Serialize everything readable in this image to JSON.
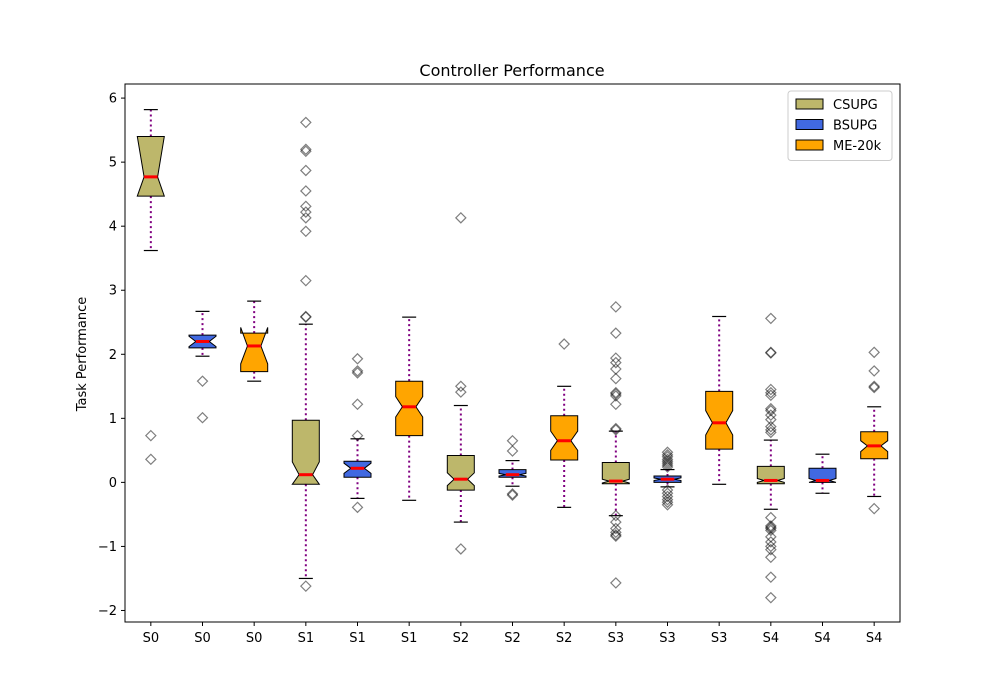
{
  "chart_data": {
    "type": "boxplot",
    "title": "Controller Performance",
    "xlabel": "",
    "ylabel": "Task Performance",
    "ylim": [
      -2.18,
      6.22
    ],
    "yticks": [
      -2,
      -1,
      0,
      1,
      2,
      3,
      4,
      5,
      6
    ],
    "ytick_labels": [
      "−2",
      "−1",
      "0",
      "1",
      "2",
      "3",
      "4",
      "5",
      "6"
    ],
    "grid": false,
    "legend_position": "top-right",
    "legend": [
      {
        "name": "CSUPG",
        "color": "#bdb76b"
      },
      {
        "name": "BSUPG",
        "color": "#4169e1"
      },
      {
        "name": "ME-20k",
        "color": "#ffa500"
      }
    ],
    "median_color": "#ff0000",
    "whisker_color": "#800080",
    "categories": [
      "S0",
      "S0",
      "S0",
      "S1",
      "S1",
      "S1",
      "S2",
      "S2",
      "S2",
      "S3",
      "S3",
      "S3",
      "S4",
      "S4",
      "S4"
    ],
    "boxes": [
      {
        "label": "S0",
        "series": "CSUPG",
        "color": "#bdb76b",
        "whislo": 3.62,
        "q1": 4.47,
        "med": 4.77,
        "q3": 5.4,
        "whishi": 5.82,
        "notch": [
          4.47,
          5.4
        ],
        "fliers": [
          0.73,
          0.36
        ]
      },
      {
        "label": "S0",
        "series": "BSUPG",
        "color": "#4169e1",
        "whislo": 1.97,
        "q1": 2.1,
        "med": 2.2,
        "q3": 2.3,
        "whishi": 2.67,
        "notch": [
          2.12,
          2.28
        ],
        "fliers": [
          1.58,
          1.01
        ]
      },
      {
        "label": "S0",
        "series": "ME-20k",
        "color": "#ffa500",
        "whislo": 1.58,
        "q1": 1.73,
        "med": 2.13,
        "q3": 2.33,
        "whishi": 2.83,
        "notch": [
          1.85,
          2.42
        ],
        "fliers": []
      },
      {
        "label": "S1",
        "series": "CSUPG",
        "color": "#bdb76b",
        "whislo": -1.5,
        "q1": -0.03,
        "med": 0.12,
        "q3": 0.97,
        "whishi": 2.47,
        "notch": [
          -0.03,
          0.32
        ],
        "fliers": [
          5.62,
          5.2,
          5.17,
          4.87,
          4.55,
          4.31,
          4.22,
          4.13,
          3.92,
          3.15,
          2.59,
          2.58,
          -1.62
        ]
      },
      {
        "label": "S1",
        "series": "BSUPG",
        "color": "#4169e1",
        "whislo": -0.25,
        "q1": 0.08,
        "med": 0.22,
        "q3": 0.33,
        "whishi": 0.68,
        "notch": [
          0.14,
          0.3
        ],
        "fliers": [
          1.93,
          1.74,
          1.71,
          1.22,
          0.73,
          -0.39
        ]
      },
      {
        "label": "S1",
        "series": "ME-20k",
        "color": "#ffa500",
        "whislo": -0.28,
        "q1": 0.73,
        "med": 1.18,
        "q3": 1.58,
        "whishi": 2.58,
        "notch": [
          1.02,
          1.34
        ],
        "fliers": []
      },
      {
        "label": "S2",
        "series": "CSUPG",
        "color": "#bdb76b",
        "whislo": -0.62,
        "q1": -0.12,
        "med": 0.05,
        "q3": 0.42,
        "whishi": 1.2,
        "notch": [
          -0.05,
          0.15
        ],
        "fliers": [
          4.13,
          1.5,
          1.41,
          -1.04
        ]
      },
      {
        "label": "S2",
        "series": "BSUPG",
        "color": "#4169e1",
        "whislo": -0.06,
        "q1": 0.08,
        "med": 0.12,
        "q3": 0.2,
        "whishi": 0.34,
        "notch": [
          0.1,
          0.14
        ],
        "fliers": [
          0.65,
          0.49,
          -0.18,
          -0.2
        ]
      },
      {
        "label": "S2",
        "series": "ME-20k",
        "color": "#ffa500",
        "whislo": -0.39,
        "q1": 0.35,
        "med": 0.65,
        "q3": 1.04,
        "whishi": 1.5,
        "notch": [
          0.5,
          0.8
        ],
        "fliers": [
          2.16
        ]
      },
      {
        "label": "S3",
        "series": "CSUPG",
        "color": "#bdb76b",
        "whislo": -0.52,
        "q1": -0.02,
        "med": 0.02,
        "q3": 0.31,
        "whishi": 0.8,
        "notch": [
          -0.01,
          0.05
        ],
        "fliers": [
          2.74,
          2.33,
          1.94,
          1.87,
          1.77,
          1.62,
          1.4,
          1.38,
          1.35,
          1.22,
          0.84,
          0.82,
          -0.52,
          -0.62,
          -0.72,
          -0.78,
          -0.82,
          -0.84,
          -1.57
        ]
      },
      {
        "label": "S3",
        "series": "BSUPG",
        "color": "#4169e1",
        "whislo": -0.07,
        "q1": 0.0,
        "med": 0.05,
        "q3": 0.1,
        "whishi": 0.2,
        "notch": [
          0.03,
          0.07
        ],
        "fliers": [
          0.47,
          0.43,
          0.4,
          0.36,
          0.33,
          0.3,
          0.27,
          0.24,
          -0.12,
          -0.17,
          -0.22,
          -0.27,
          -0.31,
          -0.35
        ]
      },
      {
        "label": "S3",
        "series": "ME-20k",
        "color": "#ffa500",
        "whislo": -0.03,
        "q1": 0.52,
        "med": 0.93,
        "q3": 1.42,
        "whishi": 2.59,
        "notch": [
          0.74,
          1.12
        ],
        "fliers": []
      },
      {
        "label": "S4",
        "series": "CSUPG",
        "color": "#bdb76b",
        "whislo": -0.42,
        "q1": -0.02,
        "med": 0.03,
        "q3": 0.25,
        "whishi": 0.66,
        "notch": [
          0.0,
          0.06
        ],
        "fliers": [
          2.56,
          2.03,
          2.02,
          1.45,
          1.4,
          1.36,
          1.15,
          1.12,
          1.05,
          0.98,
          0.87,
          0.82,
          0.78,
          -0.55,
          -0.68,
          -0.7,
          -0.72,
          -0.75,
          -0.85,
          -0.93,
          -1.0,
          -1.05,
          -1.17,
          -1.48,
          -1.8
        ]
      },
      {
        "label": "S4",
        "series": "BSUPG",
        "color": "#4169e1",
        "whislo": -0.17,
        "q1": 0.0,
        "med": 0.03,
        "q3": 0.22,
        "whishi": 0.44,
        "notch": [
          0.0,
          0.06
        ],
        "fliers": []
      },
      {
        "label": "S4",
        "series": "ME-20k",
        "color": "#ffa500",
        "whislo": -0.22,
        "q1": 0.37,
        "med": 0.57,
        "q3": 0.79,
        "whishi": 1.18,
        "notch": [
          0.48,
          0.65
        ],
        "fliers": [
          2.03,
          1.74,
          1.5,
          1.48,
          -0.41
        ]
      }
    ]
  }
}
